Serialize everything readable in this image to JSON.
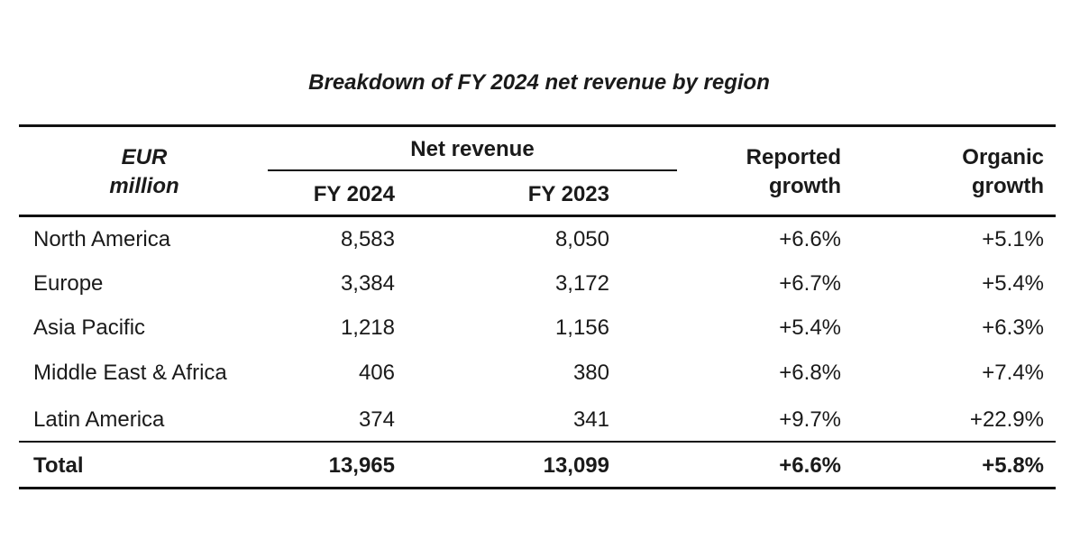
{
  "title": "Breakdown of FY 2024 net revenue by region",
  "header": {
    "unit_line1": "EUR",
    "unit_line2": "million",
    "net_revenue": "Net revenue",
    "fy2024": "FY 2024",
    "fy2023": "FY 2023",
    "reported_line1": "Reported",
    "reported_line2": "growth",
    "organic_line1": "Organic",
    "organic_line2": "growth"
  },
  "rows": [
    {
      "region": "North America",
      "fy2024": "8,583",
      "fy2023": "8,050",
      "reported": "+6.6%",
      "organic": "+5.1%"
    },
    {
      "region": "Europe",
      "fy2024": "3,384",
      "fy2023": "3,172",
      "reported": "+6.7%",
      "organic": "+5.4%"
    },
    {
      "region": "Asia Pacific",
      "fy2024": "1,218",
      "fy2023": "1,156",
      "reported": "+5.4%",
      "organic": "+6.3%"
    },
    {
      "region": "Middle East & Africa",
      "fy2024": "406",
      "fy2023": "380",
      "reported": "+6.8%",
      "organic": "+7.4%"
    },
    {
      "region": "Latin America",
      "fy2024": "374",
      "fy2023": "341",
      "reported": "+9.7%",
      "organic": "+22.9%"
    }
  ],
  "total": {
    "region": "Total",
    "fy2024": "13,965",
    "fy2023": "13,099",
    "reported": "+6.6%",
    "organic": "+5.8%"
  }
}
